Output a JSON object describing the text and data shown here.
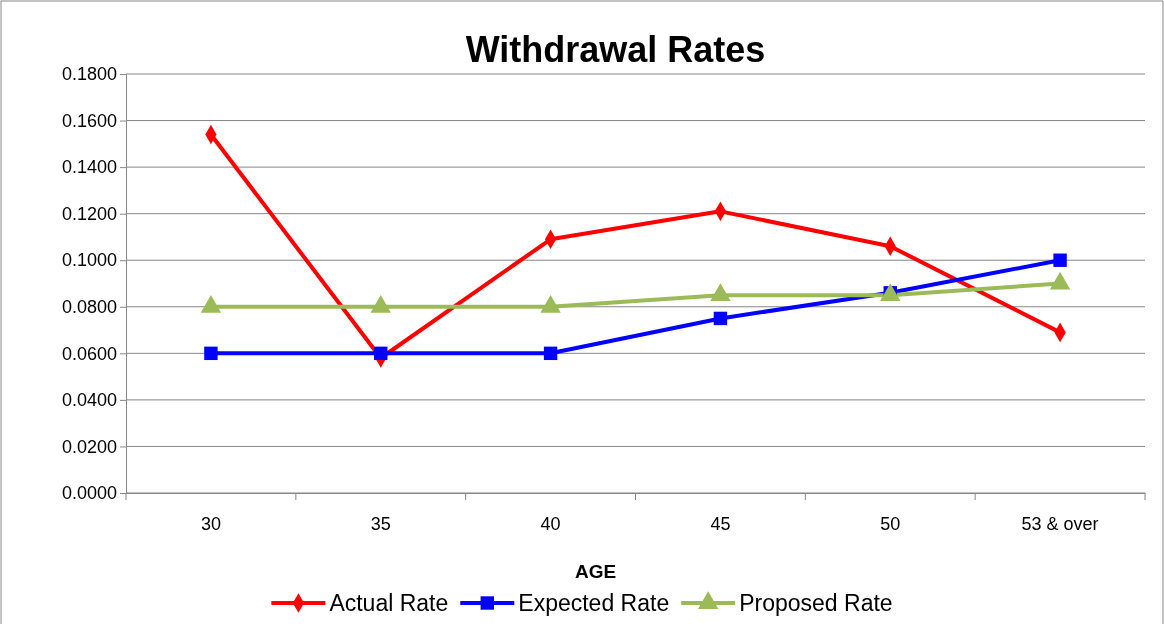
{
  "chart_data": {
    "type": "line",
    "title": "Withdrawal Rates",
    "xlabel": "AGE",
    "categories": [
      "30",
      "35",
      "40",
      "45",
      "50",
      "53 & over"
    ],
    "series": [
      {
        "name": "Actual Rate",
        "color": "#ff0000",
        "marker": "diamond",
        "values": [
          0.154,
          0.058,
          0.109,
          0.121,
          0.106,
          0.069
        ]
      },
      {
        "name": "Expected Rate",
        "color": "#0000ff",
        "marker": "square",
        "values": [
          0.06,
          0.06,
          0.06,
          0.075,
          0.086,
          0.1
        ]
      },
      {
        "name": "Proposed Rate",
        "color": "#9bbb59",
        "marker": "triangle",
        "values": [
          0.08,
          0.08,
          0.08,
          0.085,
          0.085,
          0.09
        ]
      }
    ],
    "ylim": [
      0,
      0.18
    ],
    "yticks": [
      {
        "value": 0,
        "label": "0.0000"
      },
      {
        "value": 0.02,
        "label": "0.0200"
      },
      {
        "value": 0.04,
        "label": "0.0400"
      },
      {
        "value": 0.06,
        "label": "0.0600"
      },
      {
        "value": 0.08,
        "label": "0.0800"
      },
      {
        "value": 0.1,
        "label": "0.1000"
      },
      {
        "value": 0.12,
        "label": "0.1200"
      },
      {
        "value": 0.14,
        "label": "0.1400"
      },
      {
        "value": 0.16,
        "label": "0.1600"
      },
      {
        "value": 0.18,
        "label": "0.1800"
      }
    ],
    "grid": "y",
    "legend": "bottom",
    "line_style": "solid"
  }
}
